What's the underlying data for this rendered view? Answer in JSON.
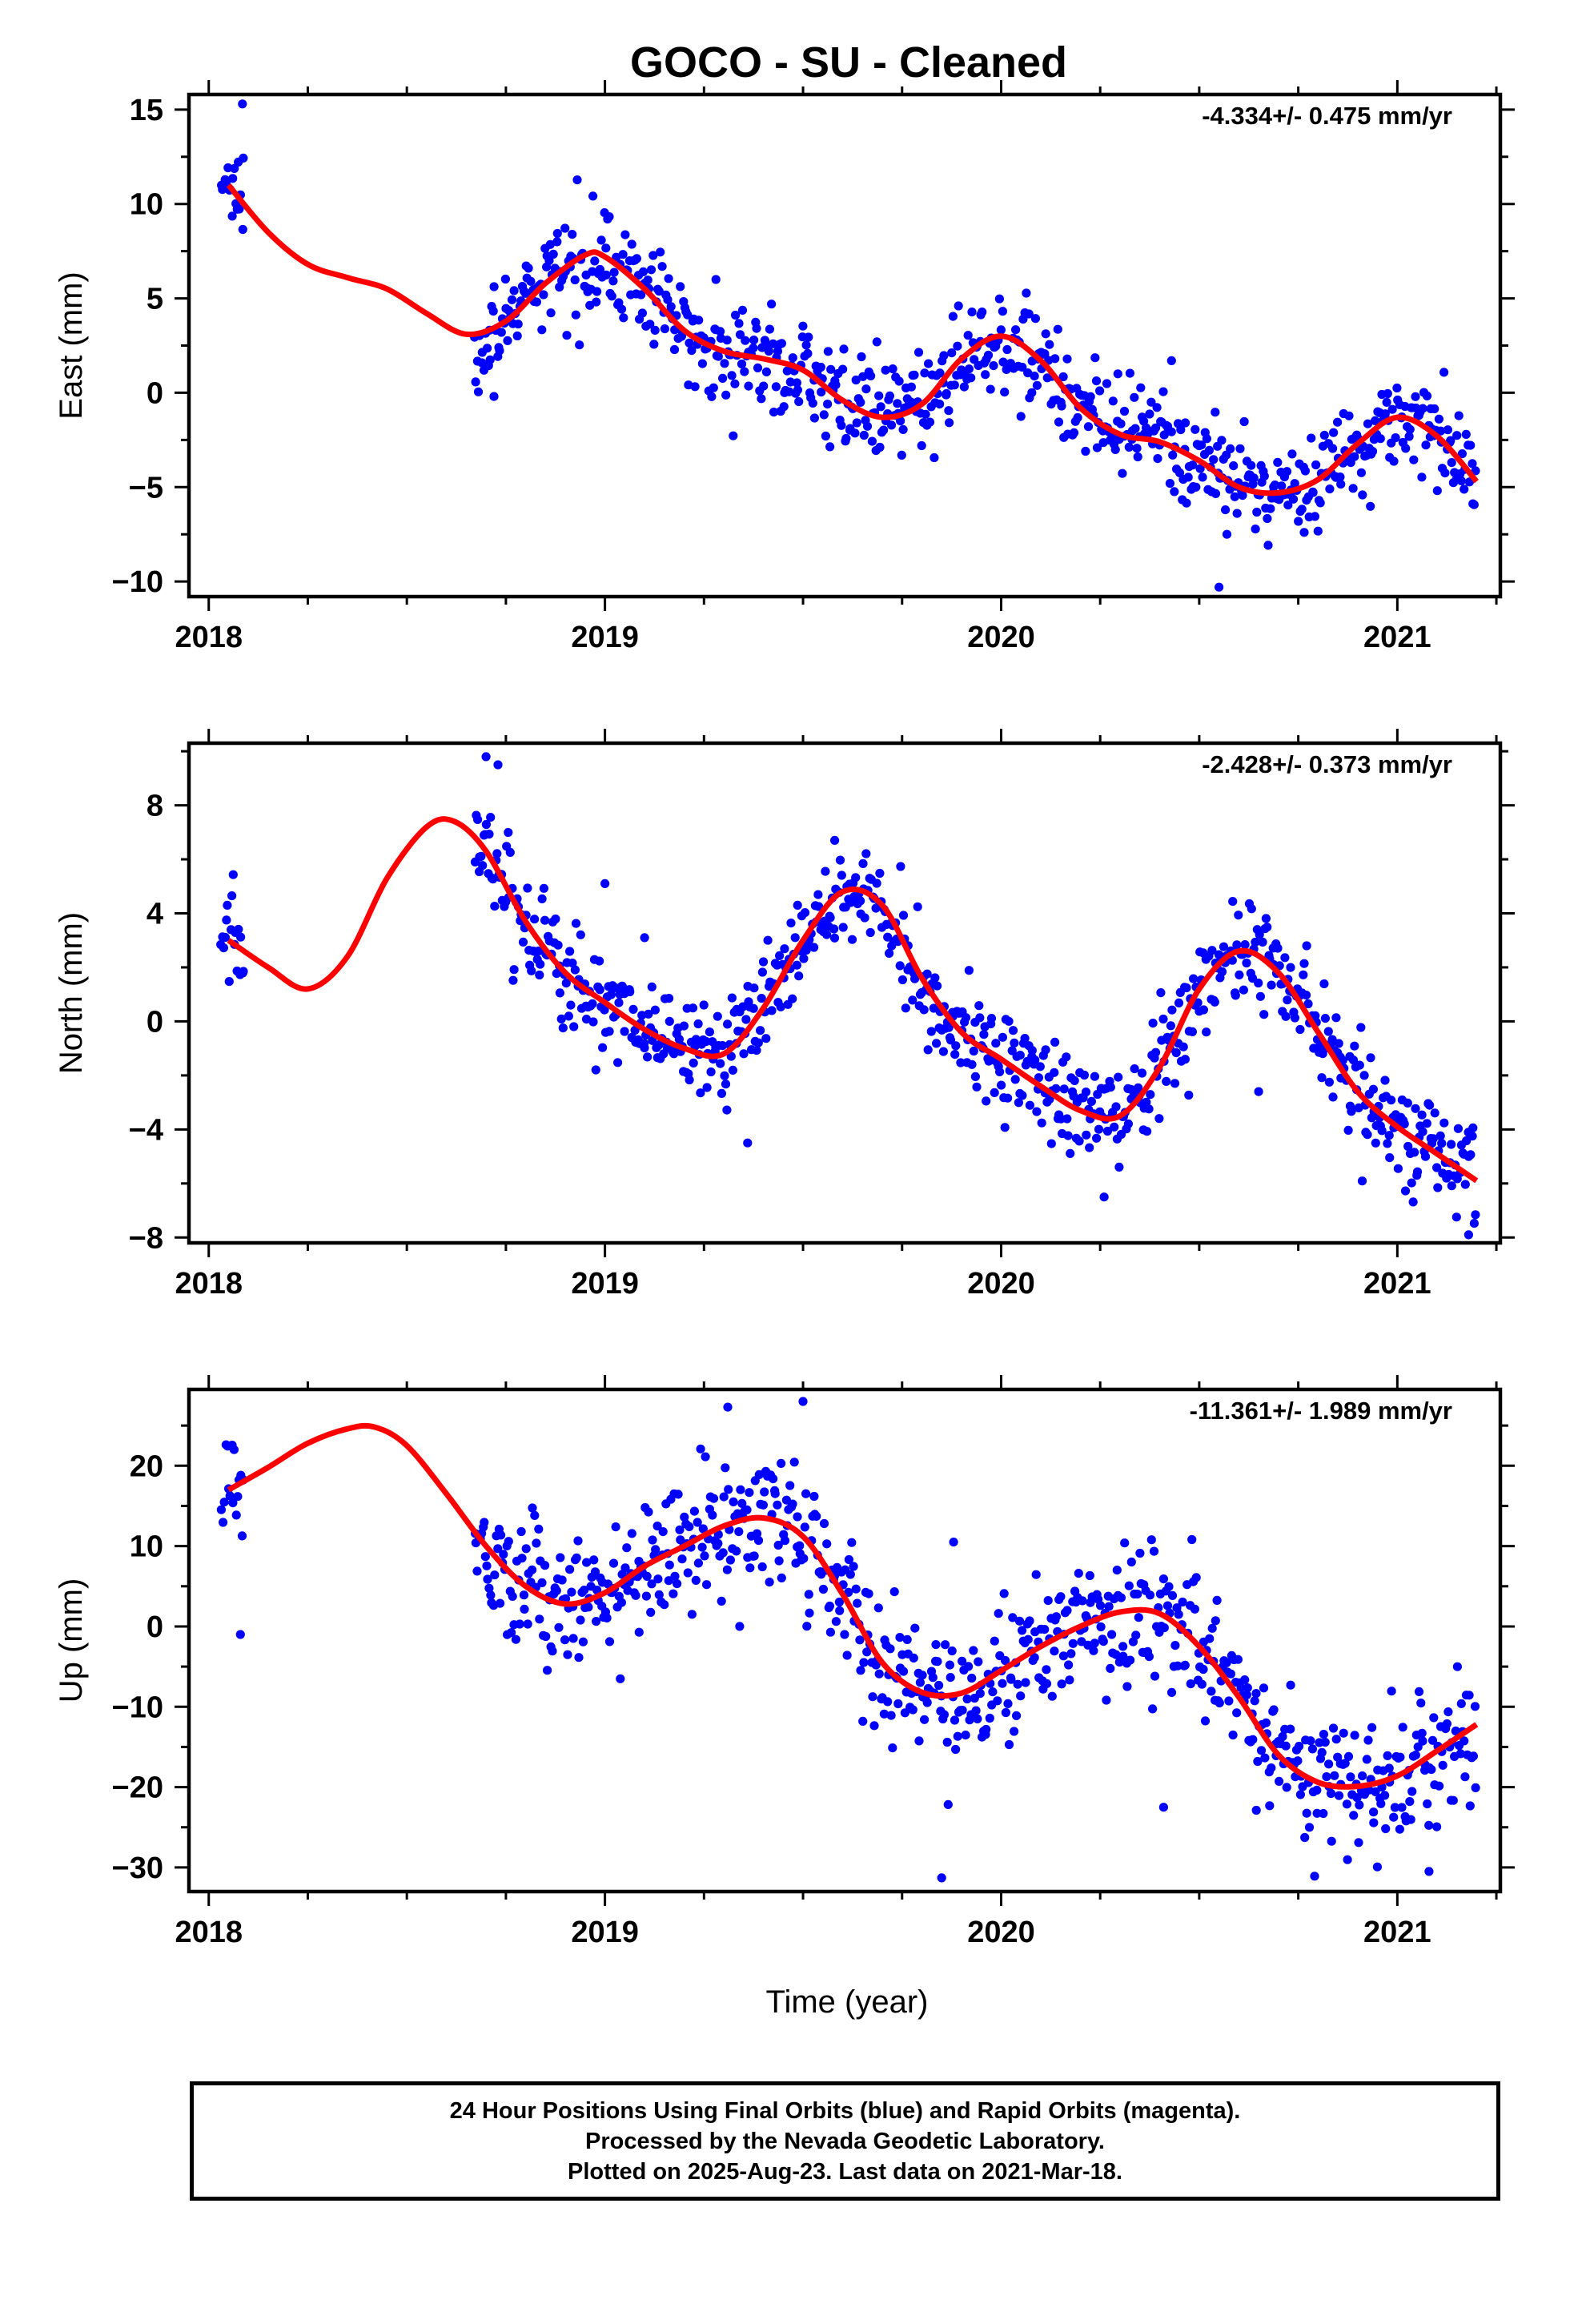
{
  "title": "GOCO  - SU - Cleaned",
  "xlabel": "Time (year)",
  "x_ticks": [
    "2018",
    "2019",
    "2020",
    "2021"
  ],
  "colors": {
    "final_orbits": "#0000ff",
    "model": "#ff0000",
    "frame": "#000000"
  },
  "chart_data": [
    {
      "type": "scatter",
      "component": "East",
      "ylabel": "East (mm)",
      "rate": "-4.334+/- 0.475 mm/yr",
      "xlim": [
        2017.95,
        2021.26
      ],
      "ylim": [
        -10.8,
        15.8
      ],
      "y_ticks": [
        -10,
        -5,
        0,
        5,
        10,
        15
      ],
      "model_x": [
        2018.05,
        2018.15,
        2018.25,
        2018.35,
        2018.45,
        2018.55,
        2018.65,
        2018.75,
        2018.85,
        2018.95,
        2019.0,
        2019.1,
        2019.2,
        2019.3,
        2019.4,
        2019.5,
        2019.6,
        2019.7,
        2019.8,
        2019.9,
        2020.0,
        2020.1,
        2020.2,
        2020.3,
        2020.4,
        2020.5,
        2020.6,
        2020.7,
        2020.8,
        2020.9,
        2021.0,
        2021.1,
        2021.2
      ],
      "model_y": [
        11.0,
        8.5,
        6.8,
        6.1,
        5.5,
        4.2,
        3.1,
        3.8,
        5.8,
        7.3,
        7.2,
        5.5,
        3.3,
        2.2,
        1.8,
        1.2,
        -0.4,
        -1.3,
        -0.6,
        1.8,
        3.0,
        1.7,
        -0.8,
        -2.2,
        -2.6,
        -3.6,
        -5.0,
        -5.3,
        -4.6,
        -2.7,
        -1.3,
        -2.3,
        -4.7
      ],
      "scatter_sets": [
        {
          "from": 2018.03,
          "to": 2018.09,
          "n": 18,
          "spread": 1.2
        },
        {
          "from": 2018.67,
          "to": 2021.2,
          "n": 760,
          "spread": 1.3
        }
      ],
      "outliers": [
        [
          2018.085,
          15.3
        ],
        [
          2020.55,
          -10.3
        ],
        [
          2019.28,
          6.0
        ],
        [
          2018.72,
          -0.2
        ],
        [
          2020.43,
          1.7
        ],
        [
          2020.57,
          -7.5
        ]
      ]
    },
    {
      "type": "scatter",
      "component": "North",
      "ylabel": "North (mm)",
      "rate": "-2.428+/- 0.373 mm/yr",
      "xlim": [
        2017.95,
        2021.26
      ],
      "ylim": [
        -8.2,
        10.3
      ],
      "y_ticks": [
        -8,
        -4,
        0,
        4,
        8
      ],
      "model_x": [
        2018.05,
        2018.15,
        2018.25,
        2018.35,
        2018.45,
        2018.55,
        2018.62,
        2018.7,
        2018.8,
        2018.9,
        2019.0,
        2019.1,
        2019.2,
        2019.3,
        2019.4,
        2019.5,
        2019.6,
        2019.7,
        2019.8,
        2019.9,
        2020.0,
        2020.1,
        2020.2,
        2020.3,
        2020.4,
        2020.5,
        2020.6,
        2020.7,
        2020.8,
        2020.9,
        2021.0,
        2021.1,
        2021.2
      ],
      "model_y": [
        3.0,
        2.0,
        1.2,
        2.4,
        5.3,
        7.2,
        7.4,
        6.3,
        3.7,
        1.8,
        0.7,
        -0.3,
        -1.0,
        -1.2,
        0.5,
        3.0,
        4.8,
        4.3,
        1.6,
        -0.4,
        -1.4,
        -2.4,
        -3.3,
        -3.5,
        -1.7,
        1.2,
        2.6,
        1.8,
        -0.4,
        -2.6,
        -3.9,
        -4.9,
        -5.9
      ],
      "scatter_sets": [
        {
          "from": 2018.03,
          "to": 2018.09,
          "n": 18,
          "spread": 1.0
        },
        {
          "from": 2018.67,
          "to": 2021.2,
          "n": 760,
          "spread": 1.0
        }
      ],
      "outliers": [
        [
          2018.7,
          9.8
        ],
        [
          2018.73,
          9.5
        ],
        [
          2019.0,
          5.1
        ],
        [
          2019.1,
          3.1
        ],
        [
          2019.36,
          -4.5
        ],
        [
          2019.58,
          6.7
        ],
        [
          2020.26,
          -6.5
        ],
        [
          2020.65,
          -2.6
        ],
        [
          2021.18,
          -7.9
        ]
      ]
    },
    {
      "type": "scatter",
      "component": "Up",
      "ylabel": "Up (mm)",
      "rate": "-11.361+/- 1.989 mm/yr",
      "xlim": [
        2017.95,
        2021.26
      ],
      "ylim": [
        -33,
        29.5
      ],
      "y_ticks": [
        -30,
        -20,
        -10,
        0,
        10,
        20
      ],
      "model_x": [
        2018.05,
        2018.15,
        2018.25,
        2018.35,
        2018.42,
        2018.5,
        2018.6,
        2018.7,
        2018.8,
        2018.9,
        2019.0,
        2019.1,
        2019.2,
        2019.3,
        2019.4,
        2019.5,
        2019.6,
        2019.7,
        2019.8,
        2019.9,
        2020.0,
        2020.1,
        2020.2,
        2020.3,
        2020.4,
        2020.5,
        2020.6,
        2020.7,
        2020.8,
        2020.9,
        2021.0,
        2021.1,
        2021.2
      ],
      "model_y": [
        17.0,
        19.8,
        22.8,
        24.6,
        24.8,
        22.5,
        16.5,
        10.0,
        5.0,
        2.8,
        4.2,
        7.5,
        10.0,
        12.5,
        13.5,
        11.2,
        4.0,
        -4.5,
        -8.2,
        -8.3,
        -5.5,
        -2.5,
        0.0,
        1.8,
        1.6,
        -2.5,
        -8.8,
        -16.0,
        -19.4,
        -19.9,
        -18.6,
        -15.5,
        -12.2
      ],
      "scatter_sets": [
        {
          "from": 2018.03,
          "to": 2018.09,
          "n": 16,
          "spread": 4.0
        },
        {
          "from": 2018.67,
          "to": 2021.2,
          "n": 760,
          "spread": 4.2
        }
      ],
      "outliers": [
        [
          2018.08,
          -1.0
        ],
        [
          2019.31,
          27.3
        ],
        [
          2019.5,
          28.0
        ],
        [
          2019.85,
          -31.3
        ],
        [
          2020.41,
          -22.5
        ],
        [
          2021.08,
          -30.5
        ],
        [
          2019.34,
          0.0
        ],
        [
          2019.88,
          10.5
        ]
      ]
    }
  ],
  "footer": {
    "line1": "24 Hour Positions Using Final Orbits (blue) and Rapid Orbits (magenta).",
    "line2": "Processed by the Nevada Geodetic Laboratory.",
    "line3": "Plotted on 2025-Aug-23. Last data on 2021-Mar-18."
  }
}
